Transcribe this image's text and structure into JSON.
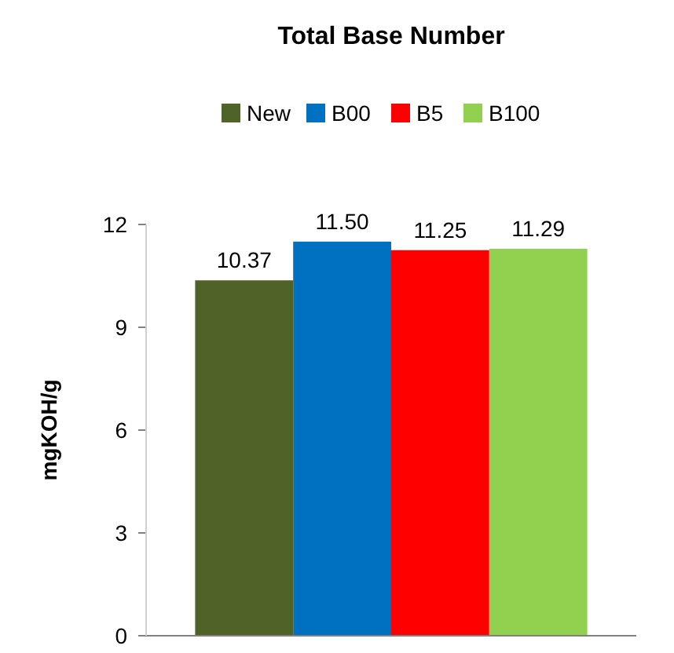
{
  "chart_data": {
    "type": "bar",
    "title": "Total Base Number",
    "ylabel": "mgKOH/g",
    "categories": [
      null
    ],
    "series": [
      {
        "name": "New",
        "color": "#4f6228",
        "values": [
          10.37
        ],
        "value_labels": [
          "10.37"
        ]
      },
      {
        "name": "B00",
        "color": "#0070c0",
        "values": [
          11.5
        ],
        "value_labels": [
          "11.50"
        ]
      },
      {
        "name": "B5",
        "color": "#ff0000",
        "values": [
          11.25
        ],
        "value_labels": [
          "11.25"
        ]
      },
      {
        "name": "B100",
        "color": "#92d050",
        "values": [
          11.29
        ],
        "value_labels": [
          "11.29"
        ]
      }
    ],
    "ylim": [
      0,
      12
    ],
    "yticks": [
      0,
      3,
      6,
      9,
      12
    ],
    "legend": "top",
    "grid": false
  }
}
